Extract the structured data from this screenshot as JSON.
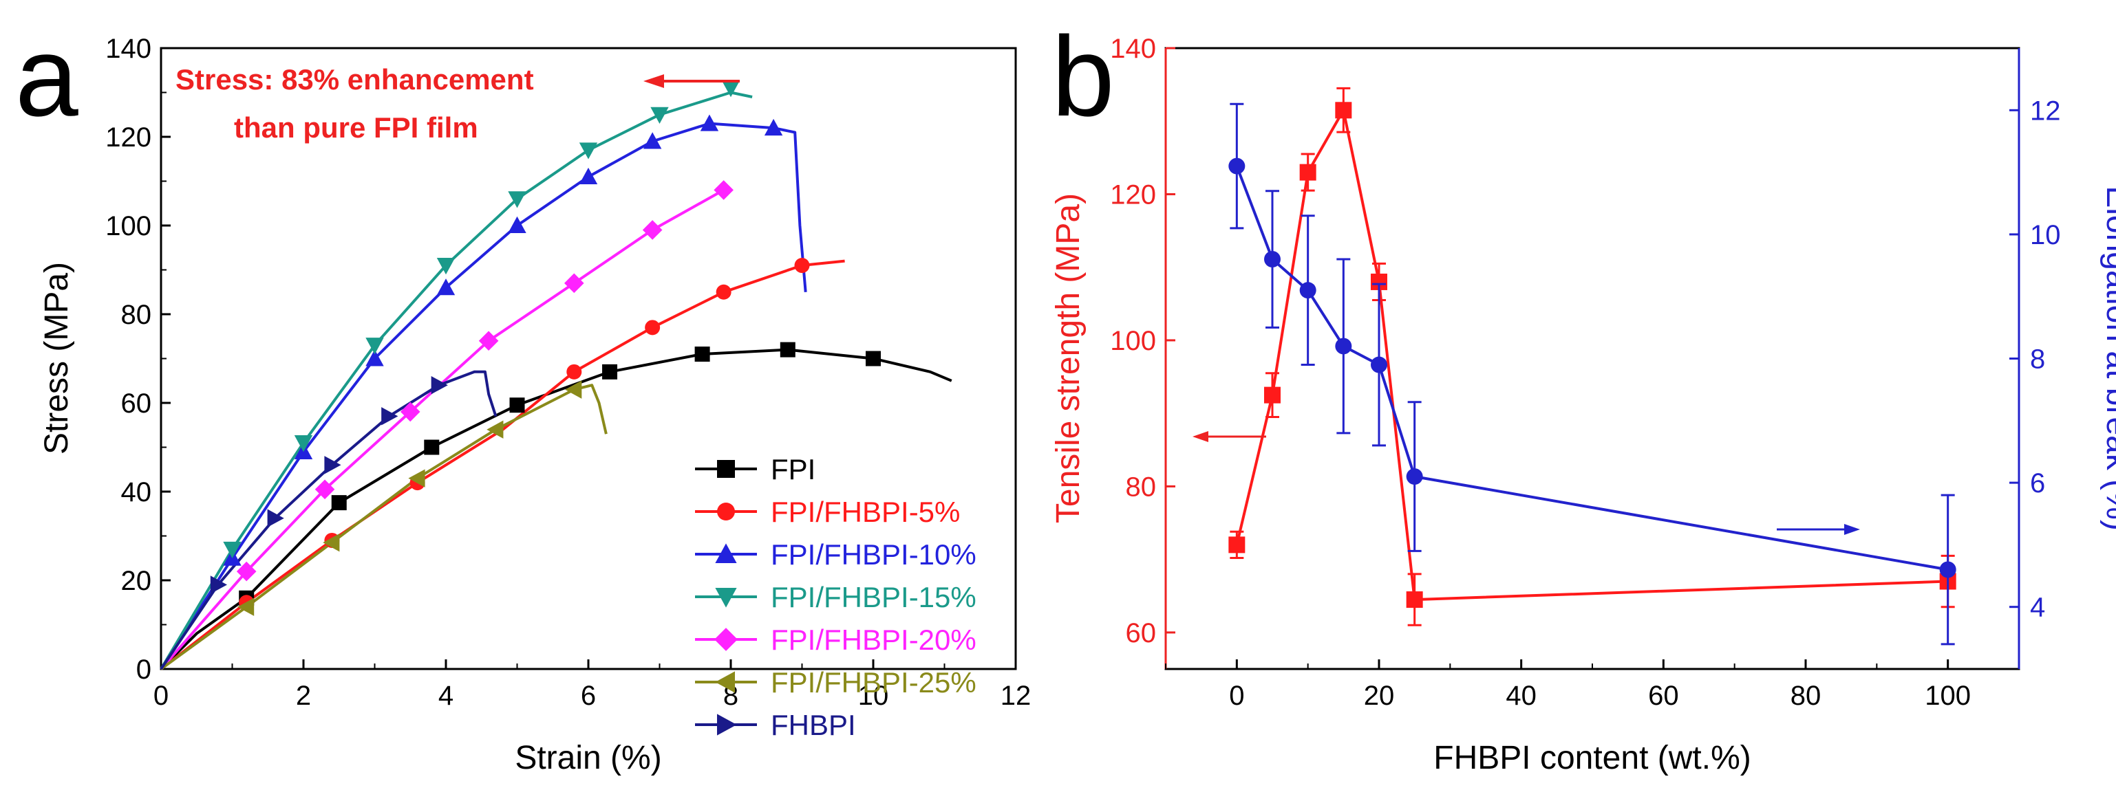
{
  "figure": {
    "panel_a_letter": "a",
    "panel_b_letter": "b"
  },
  "chart_data": [
    {
      "id": "a",
      "type": "line",
      "xlabel": "Strain (%)",
      "ylabel": "Stress (MPa)",
      "xlim": [
        0,
        12
      ],
      "ylim": [
        0,
        140
      ],
      "xticks": [
        "0",
        "2",
        "4",
        "6",
        "8",
        "10",
        "12"
      ],
      "yticks": [
        "0",
        "20",
        "40",
        "60",
        "80",
        "100",
        "120",
        "140"
      ],
      "annotation": [
        "Stress: 83% enhancement",
        "than pure FPI film"
      ],
      "annotation_color": "#ee2222",
      "legend_position": "bottom-right",
      "series": [
        {
          "name": "FPI",
          "color": "#000000",
          "marker": "square",
          "curve": [
            [
              0,
              0
            ],
            [
              0.5,
              8
            ],
            [
              1.2,
              16
            ],
            [
              2.5,
              37.5
            ],
            [
              3.8,
              50
            ],
            [
              5,
              59.5
            ],
            [
              6.3,
              67
            ],
            [
              7.6,
              71
            ],
            [
              8.8,
              72
            ],
            [
              10,
              70
            ],
            [
              10.8,
              67
            ],
            [
              11.1,
              65
            ]
          ],
          "markers": [
            [
              1.2,
              16
            ],
            [
              2.5,
              37.5
            ],
            [
              3.8,
              50
            ],
            [
              5,
              59.5
            ],
            [
              6.3,
              67
            ],
            [
              7.6,
              71
            ],
            [
              8.8,
              72
            ],
            [
              10,
              70
            ]
          ]
        },
        {
          "name": "FPI/FHBPI-5%",
          "color": "#ff1a1a",
          "marker": "circle",
          "curve": [
            [
              0,
              0
            ],
            [
              1.2,
              15
            ],
            [
              2.4,
              29
            ],
            [
              3.6,
              42
            ],
            [
              4.8,
              54
            ],
            [
              5.8,
              67
            ],
            [
              6.9,
              77
            ],
            [
              7.9,
              85
            ],
            [
              9,
              91
            ],
            [
              9.6,
              92
            ]
          ],
          "markers": [
            [
              1.2,
              15
            ],
            [
              2.4,
              29
            ],
            [
              3.6,
              42
            ],
            [
              5.8,
              67
            ],
            [
              6.9,
              77
            ],
            [
              7.9,
              85
            ],
            [
              9,
              91
            ]
          ]
        },
        {
          "name": "FPI/FHBPI-10%",
          "color": "#2222dd",
          "marker": "triangle-up",
          "curve": [
            [
              0,
              0
            ],
            [
              1,
              25
            ],
            [
              2,
              49
            ],
            [
              3,
              70
            ],
            [
              4,
              86
            ],
            [
              5,
              100
            ],
            [
              6,
              111
            ],
            [
              6.9,
              119
            ],
            [
              7.7,
              123
            ],
            [
              8.6,
              122
            ],
            [
              8.9,
              121
            ],
            [
              8.97,
              100
            ],
            [
              9.05,
              85
            ]
          ],
          "markers": [
            [
              1,
              25
            ],
            [
              2,
              49
            ],
            [
              3,
              70
            ],
            [
              4,
              86
            ],
            [
              5,
              100
            ],
            [
              6,
              111
            ],
            [
              6.9,
              119
            ],
            [
              7.7,
              123
            ],
            [
              8.6,
              122
            ]
          ]
        },
        {
          "name": "FPI/FHBPI-15%",
          "color": "#1a9a8a",
          "marker": "triangle-down",
          "curve": [
            [
              0,
              0
            ],
            [
              1,
              27
            ],
            [
              2,
              51
            ],
            [
              3,
              73
            ],
            [
              4,
              91
            ],
            [
              5,
              106
            ],
            [
              6,
              117
            ],
            [
              7,
              125
            ],
            [
              8,
              130
            ],
            [
              8.3,
              129
            ]
          ],
          "markers": [
            [
              1,
              27
            ],
            [
              2,
              51
            ],
            [
              3,
              73
            ],
            [
              4,
              91
            ],
            [
              5,
              106
            ],
            [
              6,
              117
            ],
            [
              7,
              125
            ],
            [
              8,
              131
            ]
          ]
        },
        {
          "name": "FPI/FHBPI-20%",
          "color": "#ff22ff",
          "marker": "diamond",
          "curve": [
            [
              0,
              0
            ],
            [
              1.2,
              22
            ],
            [
              2.3,
              40.5
            ],
            [
              3.5,
              58
            ],
            [
              4.6,
              74
            ],
            [
              5.8,
              87
            ],
            [
              6.9,
              99
            ],
            [
              7.9,
              108
            ]
          ],
          "markers": [
            [
              1.2,
              22
            ],
            [
              2.3,
              40.5
            ],
            [
              3.5,
              58
            ],
            [
              4.6,
              74
            ],
            [
              5.8,
              87
            ],
            [
              6.9,
              99
            ],
            [
              7.9,
              108
            ]
          ]
        },
        {
          "name": "FPI/FHBPI-25%",
          "color": "#8a8a1a",
          "marker": "triangle-left",
          "curve": [
            [
              0,
              0
            ],
            [
              1.2,
              14
            ],
            [
              2.4,
              28.5
            ],
            [
              3.6,
              43
            ],
            [
              4.7,
              54
            ],
            [
              5.8,
              63
            ],
            [
              6.05,
              64
            ],
            [
              6.15,
              60
            ],
            [
              6.25,
              53
            ]
          ],
          "markers": [
            [
              1.2,
              14
            ],
            [
              2.4,
              28.5
            ],
            [
              3.6,
              43
            ],
            [
              4.7,
              54
            ],
            [
              5.8,
              63
            ]
          ]
        },
        {
          "name": "FHBPI",
          "color": "#1a1a8a",
          "marker": "triangle-right",
          "curve": [
            [
              0,
              0
            ],
            [
              0.8,
              19
            ],
            [
              1.6,
              34
            ],
            [
              2.4,
              46
            ],
            [
              3.2,
              57
            ],
            [
              3.9,
              64
            ],
            [
              4.4,
              67
            ],
            [
              4.55,
              67
            ],
            [
              4.6,
              62
            ],
            [
              4.7,
              57
            ]
          ],
          "markers": [
            [
              0.8,
              19
            ],
            [
              1.6,
              34
            ],
            [
              2.4,
              46
            ],
            [
              3.2,
              57
            ],
            [
              3.9,
              64
            ]
          ]
        }
      ]
    },
    {
      "id": "b",
      "type": "line",
      "xlabel": "FHBPI content (wt.%)",
      "ylabel_left": "Tensile strength (MPa)",
      "ylabel_right": "Elongation at break (%)",
      "xlim": [
        -10,
        110
      ],
      "ylim_left": [
        55,
        140
      ],
      "ylim_right": [
        3,
        13
      ],
      "xticks": [
        "0",
        "20",
        "40",
        "60",
        "80",
        "100"
      ],
      "yticks_left": [
        "60",
        "80",
        "100",
        "120",
        "140"
      ],
      "yticks_right": [
        "4",
        "6",
        "8",
        "10",
        "12"
      ],
      "categories_x": [
        0,
        5,
        10,
        15,
        20,
        25,
        100
      ],
      "series": [
        {
          "name": "Tensile strength",
          "axis": "left",
          "color": "#ff1a1a",
          "marker": "square",
          "values": [
            72,
            92.5,
            123,
            131.5,
            108,
            64.5,
            67
          ],
          "errors": [
            1.8,
            3,
            2.5,
            3,
            2.5,
            3.5,
            3.5
          ]
        },
        {
          "name": "Elongation at break",
          "axis": "right",
          "color": "#2222cc",
          "marker": "circle",
          "values": [
            11.1,
            9.6,
            9.1,
            8.2,
            7.9,
            6.1,
            4.6
          ],
          "errors": [
            1,
            1.1,
            1.2,
            1.4,
            1.3,
            1.2,
            1.2
          ]
        }
      ]
    }
  ]
}
